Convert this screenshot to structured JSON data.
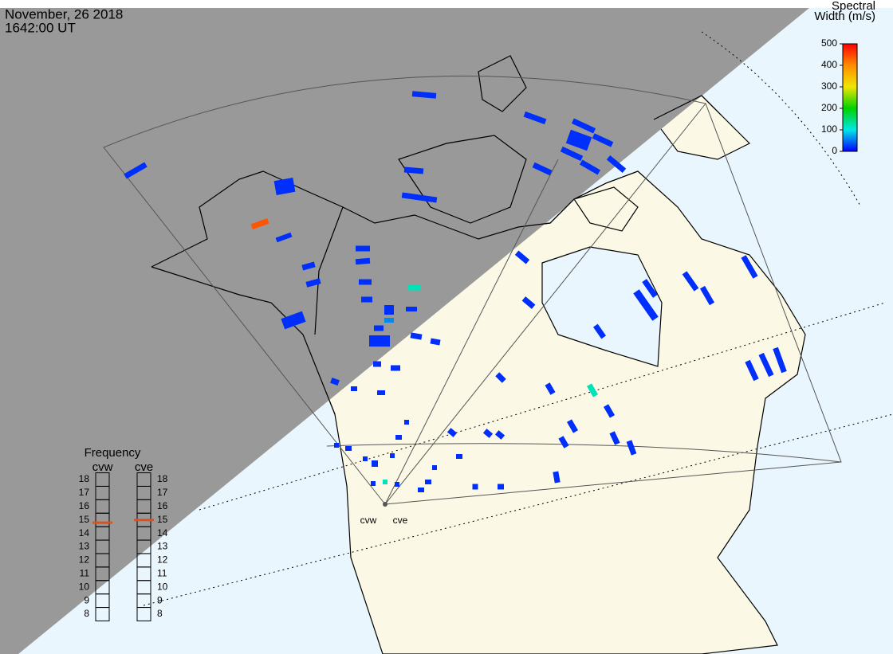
{
  "header": {
    "date": "November, 26 2018",
    "time": "1642:00 UT"
  },
  "colorbar": {
    "title": [
      "Spectral",
      "Width (m/s)"
    ],
    "lim": [
      0,
      500
    ],
    "ticks": [
      0,
      100,
      200,
      300,
      400,
      500
    ]
  },
  "frequency": {
    "title": "Frequency",
    "radars": [
      {
        "name": "cvw",
        "value": 14.8,
        "ticks": [
          8,
          9,
          10,
          11,
          12,
          13,
          14,
          15,
          16,
          17,
          18
        ]
      },
      {
        "name": "cve",
        "value": 15,
        "ticks": [
          8,
          9,
          10,
          11,
          12,
          13,
          14,
          15,
          16,
          17,
          18
        ]
      }
    ]
  },
  "radar_labels": [
    "cvw",
    "cve"
  ],
  "cells": [
    20,
    20,
    20,
    440,
    20,
    20,
    20,
    20,
    20,
    20,
    20,
    20,
    120,
    20,
    60,
    20,
    20,
    20,
    20,
    20,
    20,
    20,
    20,
    20,
    20,
    20,
    20,
    20,
    20,
    20,
    20,
    20,
    20,
    20,
    20,
    20,
    20,
    20,
    20,
    20,
    20,
    20,
    20,
    20,
    20,
    120,
    20,
    20,
    20,
    20,
    20,
    20,
    20,
    20,
    20,
    20,
    20,
    20,
    20,
    20,
    20,
    20,
    20,
    20,
    20,
    20,
    20,
    20,
    20,
    20,
    20,
    120,
    20,
    20
  ]
}
